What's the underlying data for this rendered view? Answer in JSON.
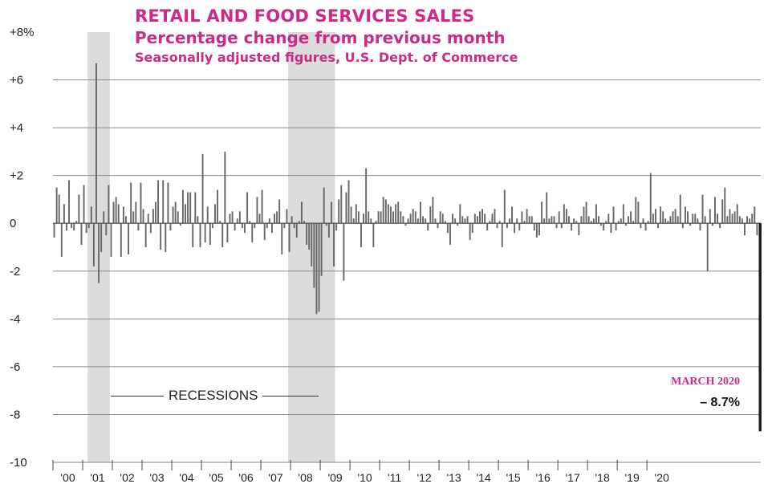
{
  "chart_data": {
    "type": "bar",
    "title": "RETAIL AND FOOD SERVICES SALES",
    "subtitle": "Percentage change from previous month",
    "note": "Seasonally adjusted figures, U.S. Dept. of Commerce",
    "xlabel": "",
    "ylabel": "",
    "ylim": [
      -10,
      8
    ],
    "yticks": [
      8,
      6,
      4,
      2,
      0,
      -2,
      -4,
      -6,
      -8,
      -10
    ],
    "ytick_labels": [
      "+8%",
      "+6",
      "+4",
      "+2",
      "0",
      "-2",
      "-4",
      "-6",
      "-8",
      "-10"
    ],
    "x_start": "2000-01",
    "xtick_labels": [
      "'00",
      "'01",
      "'02",
      "'03",
      "'04",
      "'05",
      "'06",
      "'07",
      "'08",
      "'09",
      "'10",
      "'11",
      "'12",
      "'13",
      "'14",
      "'15",
      "'16",
      "'17",
      "'18",
      "'19",
      "'20"
    ],
    "grid": true,
    "recessions": [
      {
        "start": "2001-03",
        "end": "2001-11"
      },
      {
        "start": "2007-12",
        "end": "2009-06"
      }
    ],
    "recession_label": "RECESSIONS",
    "annotation": {
      "month": "MARCH 2020",
      "value_label": "– 8.7%"
    },
    "bar_color": "#666666",
    "highlight_color": "#1a1a1a",
    "values": [
      -0.6,
      1.5,
      1.2,
      -1.4,
      0.8,
      -0.3,
      1.8,
      -0.2,
      -0.3,
      0.1,
      1.2,
      -0.9,
      1.6,
      -0.4,
      -0.2,
      0.7,
      -1.8,
      6.7,
      -2.5,
      -1.2,
      0.5,
      -0.5,
      1.6,
      -1.4,
      0.9,
      1.1,
      0.8,
      -1.4,
      0.7,
      0.3,
      -1.3,
      1.7,
      0.5,
      0.9,
      -0.3,
      1.7,
      0.6,
      -1.0,
      0.4,
      -0.4,
      0.6,
      0.9,
      1.8,
      -1.1,
      1.8,
      -1.2,
      1.7,
      -0.3,
      0.7,
      0.9,
      0.5,
      -0.1,
      1.4,
      0.8,
      1.3,
      1.3,
      -1.0,
      1.3,
      0.3,
      -1.0,
      2.9,
      -0.8,
      0.7,
      -0.9,
      -0.2,
      0.8,
      1.4,
      0.1,
      -1.0,
      3.0,
      -0.8,
      0.4,
      0.5,
      -0.3,
      0.2,
      0.5,
      -0.2,
      -0.4,
      1.3,
      0.1,
      -0.8,
      -0.2,
      1.1,
      0.4,
      1.4,
      -0.7,
      -0.2,
      0.2,
      -0.4,
      0.4,
      0.5,
      1.0,
      -1.3,
      -0.2,
      0.6,
      -1.2,
      0.3,
      -0.2,
      -0.6,
      0.1,
      0.9,
      0.1,
      -0.9,
      -1.1,
      -1.8,
      -2.7,
      -3.8,
      -3.7,
      -2.2,
      1.5,
      -0.1,
      -0.6,
      0.9,
      -1.8,
      -0.3,
      1.0,
      1.6,
      -2.4,
      1.3,
      1.8,
      0.7,
      0.2,
      0.8,
      0.5,
      -1.0,
      0.4,
      2.3,
      0.5,
      0.2,
      -1.0,
      0.1,
      0.5,
      0.5,
      1.1,
      1.0,
      0.8,
      0.7,
      0.5,
      0.8,
      0.9,
      0.5,
      0.3,
      -0.1,
      0.2,
      0.4,
      0.6,
      0.5,
      0.2,
      0.9,
      0.3,
      0.2,
      -0.3,
      0.7,
      1.1,
      0.2,
      -0.2,
      0.5,
      0.4,
      0.1,
      -0.4,
      -0.9,
      0.4,
      0.2,
      -0.1,
      0.8,
      0.3,
      0.2,
      0.3,
      -0.7,
      -0.4,
      0.4,
      0.3,
      0.5,
      0.6,
      0.4,
      -0.3,
      0.1,
      0.4,
      0.6,
      -0.2,
      0.1,
      -1.0,
      1.4,
      -0.2,
      0.2,
      0.7,
      -0.4,
      0.2,
      -0.3,
      0.5,
      0.1,
      0.6,
      0.3,
      0.3,
      -0.3,
      -0.6,
      -0.5,
      0.9,
      0.2,
      1.3,
      0.2,
      0.3,
      0.3,
      -0.2,
      0.5,
      -0.2,
      0.8,
      0.6,
      0.3,
      -0.3,
      0.2,
      0.1,
      -0.5,
      0.3,
      0.7,
      0.9,
      0.3,
      0.1,
      0.2,
      0.8,
      0.3,
      -0.1,
      -0.3,
      0.1,
      0.4,
      -0.4,
      0.7,
      -0.3,
      0.1,
      0.2,
      0.8,
      -0.1,
      0.3,
      0.5,
      0.1,
      1.1,
      0.9,
      -0.2,
      0.2,
      -0.3,
      0.1,
      2.1,
      0.4,
      0.6,
      -0.2,
      0.7,
      0.5,
      0.2,
      0.1,
      0.3,
      0.5,
      0.6,
      0.3,
      1.2,
      -0.2,
      0.7,
      0.5,
      -0.1,
      0.4,
      0.4,
      0.2,
      -0.3,
      1.2,
      0.3,
      -2.0,
      0.6,
      -0.1,
      1.1,
      0.4,
      -0.2,
      1.0,
      1.5,
      0.3,
      0.6,
      0.4,
      0.5,
      0.8,
      0.3,
      0.2,
      -0.5,
      0.3,
      0.2,
      0.4,
      0.7,
      -0.5,
      -8.7
    ]
  }
}
